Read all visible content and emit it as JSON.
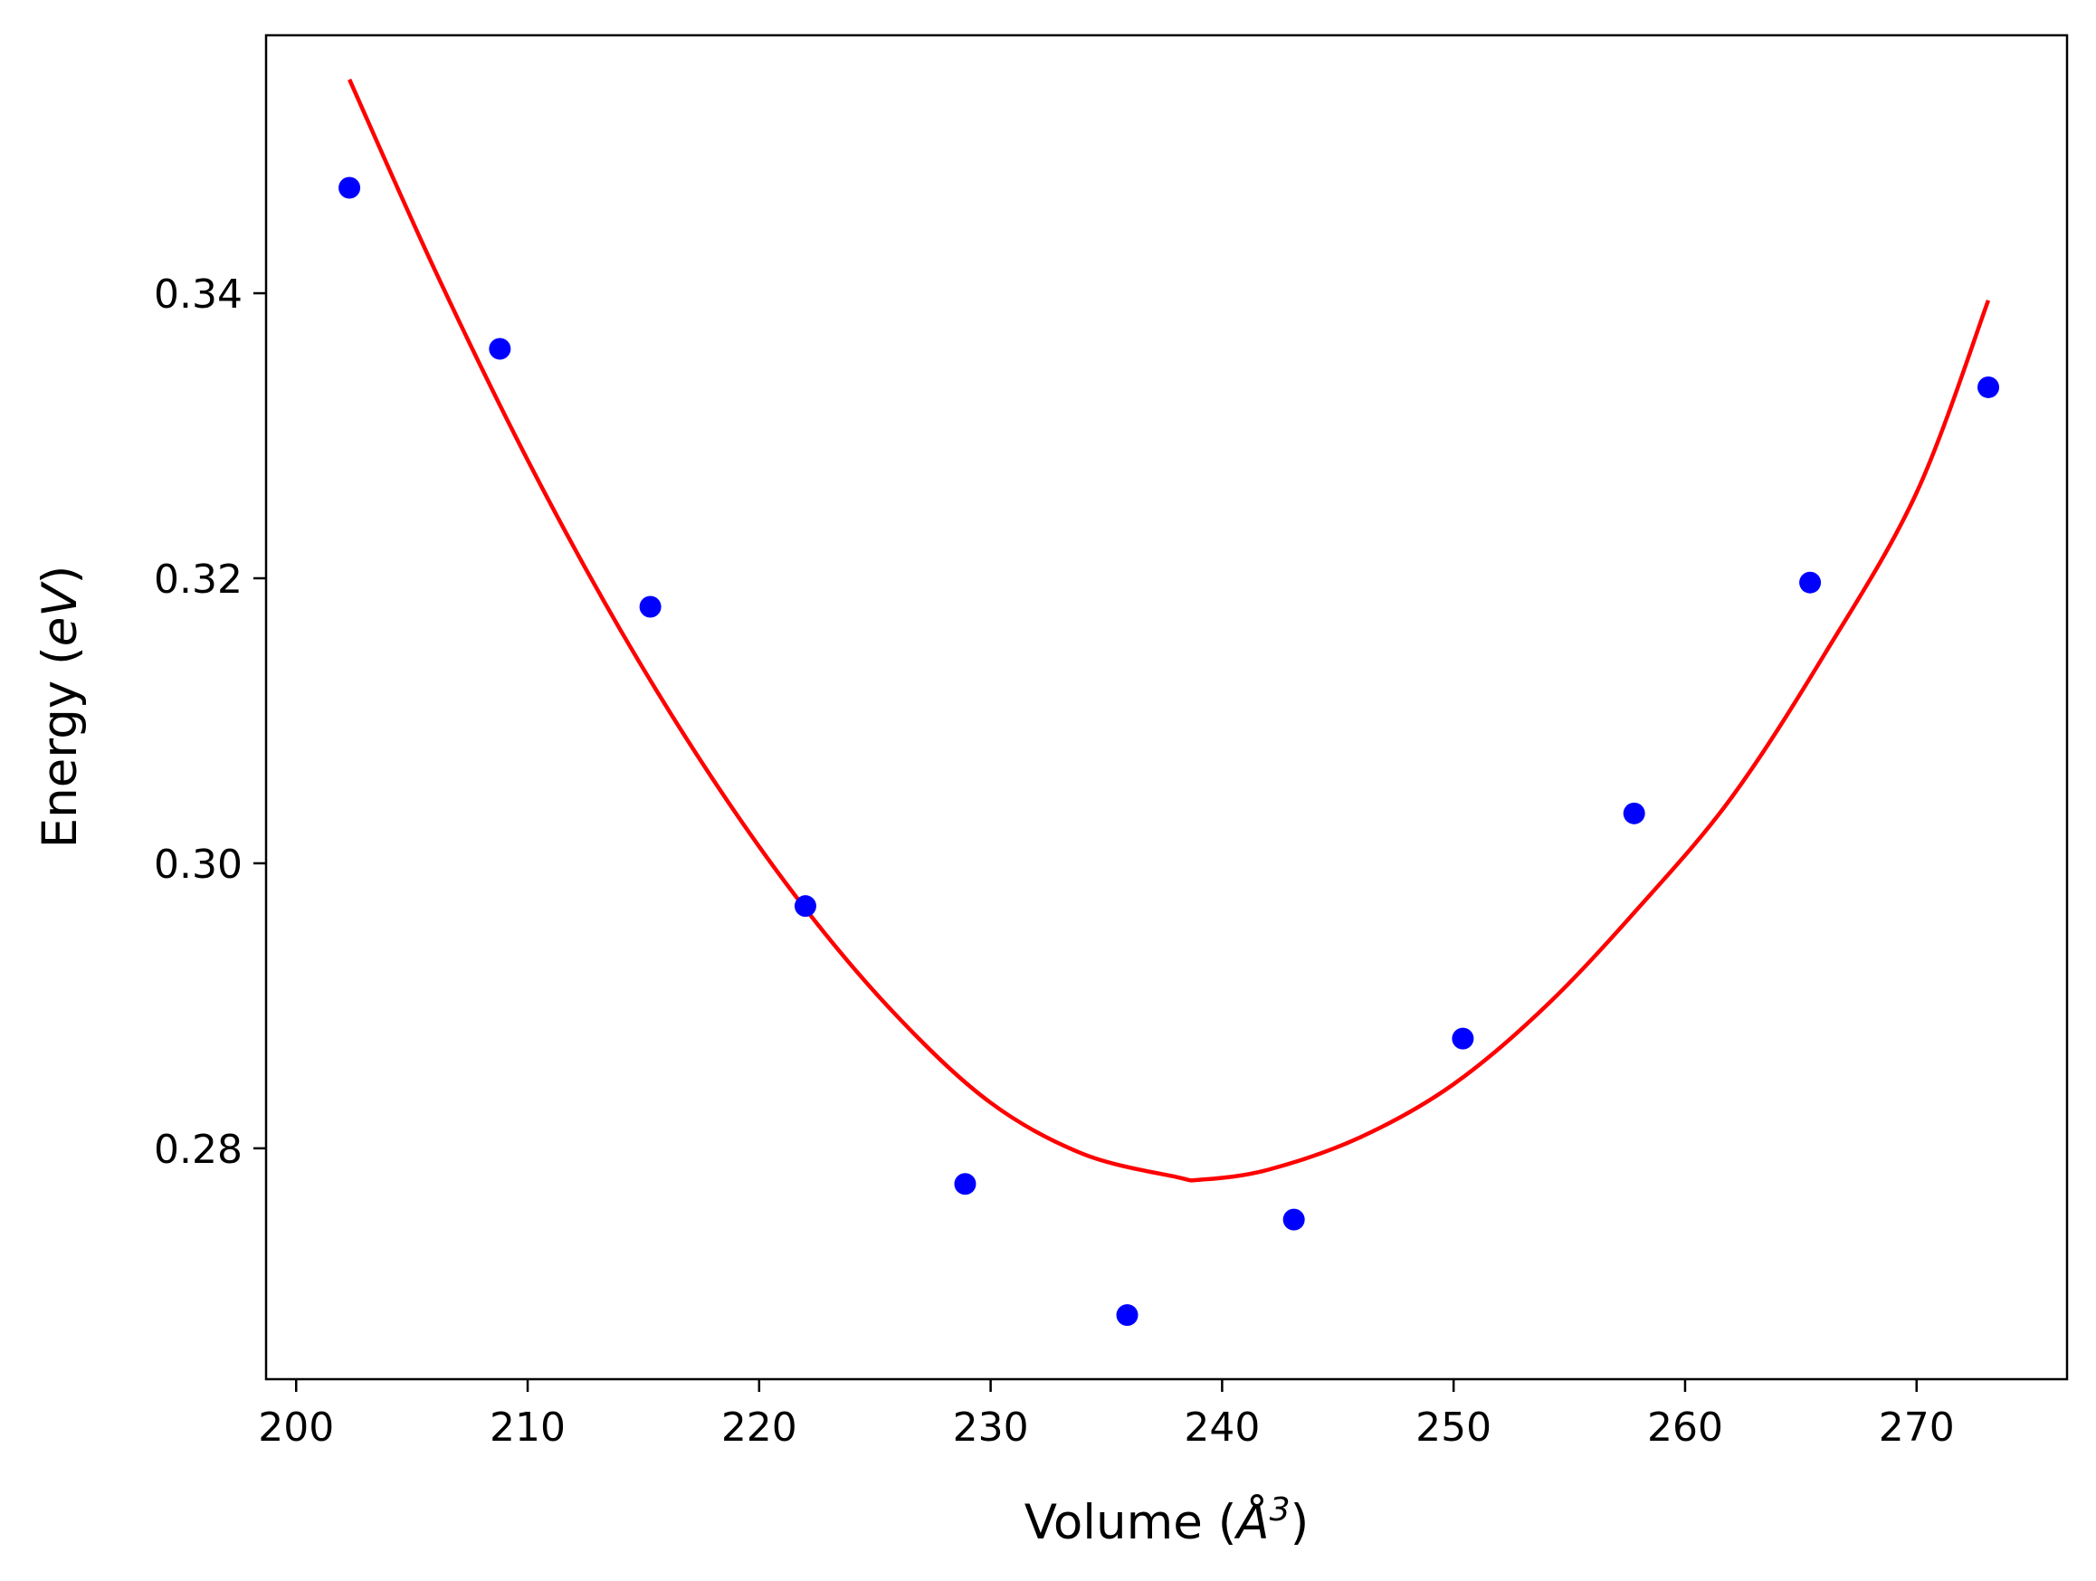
{
  "chart_data": {
    "type": "scatter",
    "title": "",
    "xlabel": "Volume (Å³)",
    "ylabel": "Energy (eV)",
    "xlabel_parts": {
      "prefix": "Volume (",
      "symbol": "Å",
      "exponent": "3",
      "suffix": ")"
    },
    "ylabel_parts": {
      "prefix": "Energy (",
      "symbol": "eV",
      "suffix": ")"
    },
    "xlim": [
      198.7,
      276.5
    ],
    "ylim": [
      0.2638,
      0.3581
    ],
    "xticks": [
      200,
      210,
      220,
      230,
      240,
      250,
      260,
      270
    ],
    "xtick_labels": [
      "200",
      "210",
      "220",
      "230",
      "240",
      "250",
      "260",
      "270"
    ],
    "yticks": [
      0.28,
      0.3,
      0.32,
      0.34
    ],
    "ytick_labels": [
      "0.28",
      "0.30",
      "0.32",
      "0.34"
    ],
    "grid": false,
    "legend": "none",
    "series": [
      {
        "kind": "points",
        "color": "#0000ff",
        "x": [
          202.3,
          208.8,
          215.3,
          222.0,
          228.9,
          235.9,
          243.1,
          250.4,
          257.8,
          265.4,
          273.1
        ],
        "y": [
          0.3474,
          0.3361,
          0.318,
          0.297,
          0.2775,
          0.2683,
          0.275,
          0.2877,
          0.3035,
          0.3197,
          0.3334
        ]
      },
      {
        "kind": "fit-curve",
        "color": "#ff0000",
        "x": [
          202.3,
          206.0,
          210.0,
          214.0,
          218.0,
          222.0,
          226.0,
          230.0,
          234.0,
          238.0,
          239.1,
          242.0,
          246.0,
          250.0,
          254.0,
          258.0,
          262.0,
          266.0,
          270.0,
          273.1
        ],
        "y": [
          0.355,
          0.3416,
          0.3283,
          0.3164,
          0.3059,
          0.2968,
          0.2892,
          0.2832,
          0.2796,
          0.278,
          0.2778,
          0.2785,
          0.2808,
          0.2845,
          0.29,
          0.2969,
          0.3046,
          0.3146,
          0.326,
          0.3395
        ]
      }
    ]
  }
}
